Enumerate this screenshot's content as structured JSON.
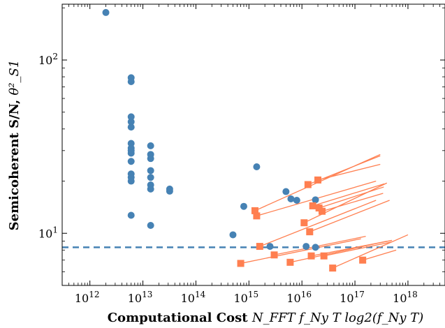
{
  "chart_data": {
    "type": "scatter",
    "xscale": "log",
    "yscale": "log",
    "xlim": [
      300000000000.0,
      5e+18
    ],
    "ylim": [
      5,
      210
    ],
    "xticks": [
      {
        "value": 1000000000000.0,
        "label": "10",
        "exp": "12"
      },
      {
        "value": 10000000000000.0,
        "label": "10",
        "exp": "13"
      },
      {
        "value": 100000000000000.0,
        "label": "10",
        "exp": "14"
      },
      {
        "value": 1000000000000000.0,
        "label": "10",
        "exp": "15"
      },
      {
        "value": 1e+16,
        "label": "10",
        "exp": "16"
      },
      {
        "value": 1e+17,
        "label": "10",
        "exp": "17"
      },
      {
        "value": 1e+18,
        "label": "10",
        "exp": "18"
      }
    ],
    "yticks": [
      {
        "value": 10,
        "label": "10",
        "exp": "1"
      },
      {
        "value": 100,
        "label": "10",
        "exp": "2"
      }
    ],
    "xlabel_text": "Computational Cost ",
    "xlabel_math": "N_FFT f_Ny T log2(f_Ny T)",
    "ylabel_text": "Semicoherent S/N, ",
    "ylabel_math": "θ²_S1",
    "threshold": 8.3,
    "colors": {
      "circle": "#4682b4",
      "square": "#ff7f50",
      "line": "#ff7f50",
      "threshold": "#4682b4"
    },
    "series": [
      {
        "marker": "circle",
        "points": [
          [
            2000000000000.0,
            188
          ],
          [
            6000000000000.0,
            79
          ],
          [
            6000000000000.0,
            75
          ],
          [
            6000000000000.0,
            47
          ],
          [
            6000000000000.0,
            44
          ],
          [
            6000000000000.0,
            41
          ],
          [
            6000000000000.0,
            33
          ],
          [
            6000000000000.0,
            31
          ],
          [
            6000000000000.0,
            30
          ],
          [
            6000000000000.0,
            29
          ],
          [
            6000000000000.0,
            26
          ],
          [
            6000000000000.0,
            22
          ],
          [
            6000000000000.0,
            21
          ],
          [
            6000000000000.0,
            20
          ],
          [
            6000000000000.0,
            12.7
          ],
          [
            14000000000000.0,
            32
          ],
          [
            14000000000000.0,
            28.5
          ],
          [
            14000000000000.0,
            27
          ],
          [
            14000000000000.0,
            23
          ],
          [
            14000000000000.0,
            21
          ],
          [
            14000000000000.0,
            19
          ],
          [
            14000000000000.0,
            18
          ],
          [
            14000000000000.0,
            11.1
          ],
          [
            32000000000000.0,
            18
          ],
          [
            32000000000000.0,
            17.5
          ],
          [
            500000000000000.0,
            9.8
          ],
          [
            800000000000000.0,
            14.3
          ],
          [
            1400000000000000.0,
            24.2
          ],
          [
            2500000000000000.0,
            8.4
          ],
          [
            5000000000000000.0,
            17.4
          ],
          [
            6200000000000000.0,
            15.8
          ],
          [
            8000000000000000.0,
            15.5
          ],
          [
            1.2e+16,
            8.4
          ],
          [
            1.8e+16,
            15.6
          ],
          [
            1.8e+16,
            8.3
          ]
        ]
      },
      {
        "marker": "square",
        "points": [
          [
            700000000000000.0,
            6.7
          ],
          [
            1300000000000000.0,
            13.5
          ],
          [
            1400000000000000.0,
            12.6
          ],
          [
            1600000000000000.0,
            8.4
          ],
          [
            3000000000000000.0,
            7.5
          ],
          [
            6000000000000000.0,
            6.8
          ],
          [
            1.1e+16,
            11.5
          ],
          [
            1.3e+16,
            19.1
          ],
          [
            1.4e+16,
            10.2
          ],
          [
            1.5e+16,
            7.4
          ],
          [
            1.6e+16,
            14.4
          ],
          [
            2e+16,
            20.3
          ],
          [
            2.1e+16,
            14.0
          ],
          [
            2.4e+16,
            13.4
          ],
          [
            2.6e+16,
            7.4
          ],
          [
            3.8e+16,
            6.3
          ],
          [
            1.4e+17,
            7.0
          ]
        ]
      }
    ],
    "trend_lines": [
      [
        [
          1300000000000000.0,
          13.5
        ],
        [
          3e+17,
          28.5
        ]
      ],
      [
        [
          1400000000000000.0,
          12.6
        ],
        [
          2.5e+17,
          20.0
        ]
      ],
      [
        [
          1600000000000000.0,
          8.4
        ],
        [
          2.5e+17,
          15.5
        ]
      ],
      [
        [
          1.1e+16,
          11.5
        ],
        [
          4e+17,
          19.5
        ]
      ],
      [
        [
          1.3e+16,
          19.1
        ],
        [
          3e+17,
          28.0
        ]
      ],
      [
        [
          1.4e+16,
          10.2
        ],
        [
          4.5e+17,
          15.5
        ]
      ],
      [
        [
          1.6e+16,
          14.4
        ],
        [
          3.6e+17,
          19.3
        ]
      ],
      [
        [
          2e+16,
          20.3
        ],
        [
          3e+17,
          25.0
        ]
      ],
      [
        [
          2.1e+16,
          14.0
        ],
        [
          3.5e+17,
          18.5
        ]
      ],
      [
        [
          2.4e+16,
          13.4
        ],
        [
          3.4e+17,
          17.0
        ]
      ],
      [
        [
          700000000000000.0,
          6.7
        ],
        [
          1.3e+17,
          9.3
        ]
      ],
      [
        [
          3000000000000000.0,
          7.5
        ],
        [
          1.6e+17,
          9.6
        ]
      ],
      [
        [
          6000000000000000.0,
          6.8
        ],
        [
          4e+17,
          9.0
        ]
      ],
      [
        [
          1.5e+16,
          7.4
        ],
        [
          5e+17,
          9.1
        ]
      ],
      [
        [
          2.6e+16,
          7.4
        ],
        [
          4.8e+17,
          8.9
        ]
      ],
      [
        [
          3.8e+16,
          6.3
        ],
        [
          1e+18,
          9.8
        ]
      ],
      [
        [
          1.4e+17,
          7.0
        ],
        [
          6e+17,
          8.0
        ]
      ]
    ]
  }
}
